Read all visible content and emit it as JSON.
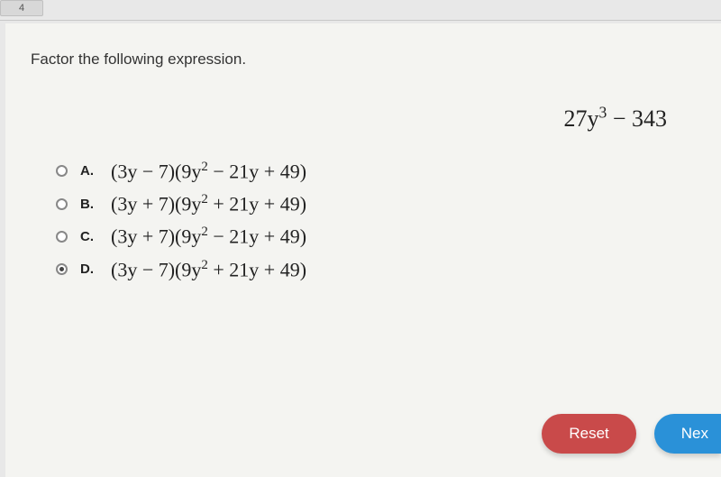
{
  "tab_hint": "4",
  "prompt": "Factor the following expression.",
  "expression_html": "27y<sup>3</sup> &minus; 343",
  "choices": [
    {
      "letter": "A.",
      "html": "(3y &minus; 7)(9y<sup>2</sup> &minus; 21y + 49)",
      "selected": false
    },
    {
      "letter": "B.",
      "html": "(3y + 7)(9y<sup>2</sup> + 21y + 49)",
      "selected": false
    },
    {
      "letter": "C.",
      "html": "(3y + 7)(9y<sup>2</sup> &minus; 21y + 49)",
      "selected": false
    },
    {
      "letter": "D.",
      "html": "(3y &minus; 7)(9y<sup>2</sup> + 21y + 49)",
      "selected": true
    }
  ],
  "buttons": {
    "reset": "Reset",
    "next": "Nex"
  },
  "colors": {
    "page_bg": "#f4f4f1",
    "outer_bg": "#e8e8e8",
    "reset_btn": "#c94a4a",
    "next_btn": "#2a91d8",
    "text": "#222222"
  }
}
